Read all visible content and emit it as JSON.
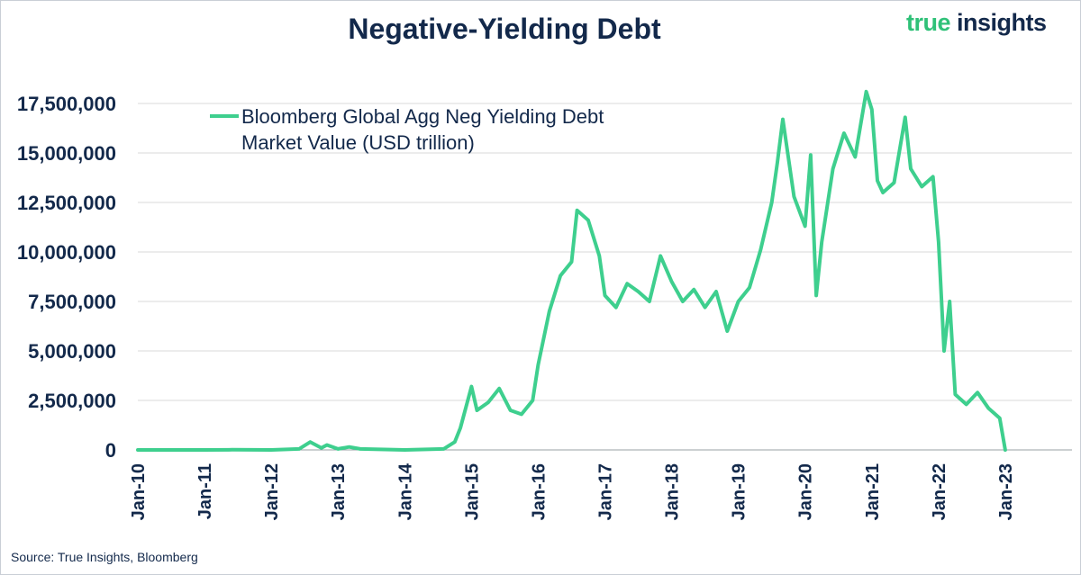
{
  "header": {
    "title": "Negative-Yielding Debt",
    "brand_part1": "true",
    "brand_part2": "insights",
    "source": "Source: True Insights, Bloomberg"
  },
  "colors": {
    "series": "#3ecf8e",
    "text": "#13294b",
    "grid": "#d9d9d9",
    "brand_green": "#2fc178"
  },
  "chart_data": {
    "type": "line",
    "title": "Negative-Yielding Debt",
    "xlabel": "",
    "ylabel": "",
    "grid": "horizontal",
    "legend_position": "top-left",
    "ylim": [
      0,
      17500000
    ],
    "yticks": [
      "0",
      "2,500,000",
      "5,000,000",
      "7,500,000",
      "10,000,000",
      "12,500,000",
      "15,000,000",
      "17,500,000"
    ],
    "ytick_values": [
      0,
      2500000,
      5000000,
      7500000,
      10000000,
      12500000,
      15000000,
      17500000
    ],
    "xlim": [
      "2010-01",
      "2023-12"
    ],
    "xticks": [
      "Jan-10",
      "Jan-11",
      "Jan-12",
      "Jan-13",
      "Jan-14",
      "Jan-15",
      "Jan-16",
      "Jan-17",
      "Jan-18",
      "Jan-19",
      "Jan-20",
      "Jan-21",
      "Jan-22",
      "Jan-23"
    ],
    "series": [
      {
        "name": "Bloomberg Global Agg Neg Yielding Debt Market Value (USD trillion)",
        "legend_line1": "Bloomberg Global Agg Neg Yielding Debt",
        "legend_line2": "Market Value (USD trillion)",
        "x": [
          "2010-01",
          "2011-01",
          "2011-06",
          "2012-01",
          "2012-06",
          "2012-08",
          "2012-10",
          "2012-11",
          "2013-01",
          "2013-03",
          "2013-05",
          "2014-01",
          "2014-08",
          "2014-10",
          "2014-11",
          "2015-01",
          "2015-02",
          "2015-04",
          "2015-06",
          "2015-08",
          "2015-10",
          "2015-12",
          "2016-01",
          "2016-03",
          "2016-05",
          "2016-07",
          "2016-08",
          "2016-10",
          "2016-12",
          "2017-01",
          "2017-03",
          "2017-05",
          "2017-07",
          "2017-09",
          "2017-11",
          "2018-01",
          "2018-03",
          "2018-05",
          "2018-07",
          "2018-09",
          "2018-11",
          "2019-01",
          "2019-03",
          "2019-05",
          "2019-07",
          "2019-08",
          "2019-09",
          "2019-11",
          "2020-01",
          "2020-02",
          "2020-03",
          "2020-04",
          "2020-06",
          "2020-08",
          "2020-10",
          "2020-12",
          "2021-01",
          "2021-02",
          "2021-03",
          "2021-05",
          "2021-07",
          "2021-08",
          "2021-10",
          "2021-12",
          "2022-01",
          "2022-02",
          "2022-03",
          "2022-04",
          "2022-06",
          "2022-08",
          "2022-10",
          "2022-12",
          "2023-01"
        ],
        "values": [
          0,
          0,
          10000,
          0,
          50000,
          400000,
          100000,
          250000,
          50000,
          150000,
          50000,
          0,
          50000,
          400000,
          1100000,
          3200000,
          2000000,
          2400000,
          3100000,
          2000000,
          1800000,
          2500000,
          4300000,
          7000000,
          8800000,
          9500000,
          12100000,
          11600000,
          9800000,
          7800000,
          7200000,
          8400000,
          8000000,
          7500000,
          9800000,
          8500000,
          7500000,
          8100000,
          7200000,
          8000000,
          6000000,
          7500000,
          8200000,
          10100000,
          12500000,
          14500000,
          16700000,
          12800000,
          11300000,
          14900000,
          7800000,
          10500000,
          14200000,
          16000000,
          14800000,
          18100000,
          17200000,
          13600000,
          13000000,
          13500000,
          16800000,
          14200000,
          13300000,
          13800000,
          10500000,
          5000000,
          7500000,
          2800000,
          2300000,
          2900000,
          2100000,
          1600000,
          0
        ]
      }
    ]
  }
}
